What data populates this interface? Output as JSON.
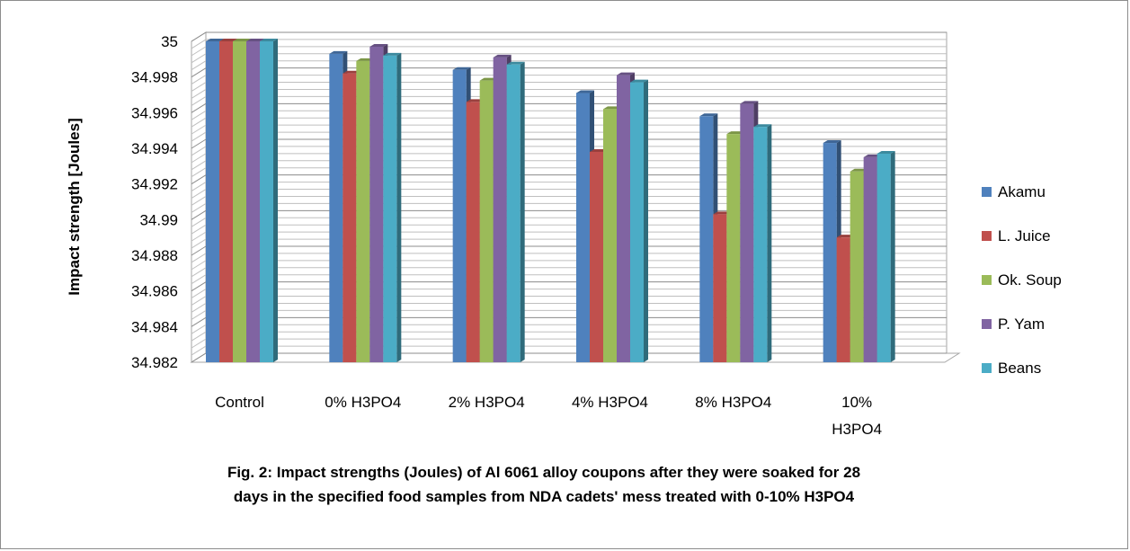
{
  "chart_data": {
    "type": "bar",
    "title": "",
    "caption": "Fig. 2: Impact strengths (Joules) of Al 6061 alloy coupons after they were soaked for 28\ndays in the specified food samples from NDA cadets' mess treated with 0-10%  H3PO4",
    "ylabel": "Impact strength [Joules]",
    "xlabel": "",
    "categories": [
      "Control",
      "0% H3PO4",
      "2% H3PO4",
      "4% H3PO4",
      "8% H3PO4",
      "10% H3PO4"
    ],
    "category_labels": [
      [
        "Control"
      ],
      [
        "0% H3PO4"
      ],
      [
        "2% H3PO4"
      ],
      [
        "4% H3PO4"
      ],
      [
        "8% H3PO4"
      ],
      [
        "10%",
        "H3PO4"
      ]
    ],
    "ylim": [
      34.982,
      35
    ],
    "yticks": [
      {
        "value": 35,
        "label": "35"
      },
      {
        "value": 34.998,
        "label": "34.998"
      },
      {
        "value": 34.996,
        "label": "34.996"
      },
      {
        "value": 34.994,
        "label": "34.994"
      },
      {
        "value": 34.992,
        "label": "34.992"
      },
      {
        "value": 34.99,
        "label": "34.99"
      },
      {
        "value": 34.988,
        "label": "34.988"
      },
      {
        "value": 34.986,
        "label": "34.986"
      },
      {
        "value": 34.984,
        "label": "34.984"
      },
      {
        "value": 34.982,
        "label": "34.982"
      }
    ],
    "grid": true,
    "legend_position": "right",
    "series": [
      {
        "name": "Akamu",
        "color": "#4f81bd",
        "values": [
          35,
          34.9993,
          34.9984,
          34.9971,
          34.9958,
          34.9943
        ]
      },
      {
        "name": "L. Juice",
        "color": "#c0504d",
        "values": [
          35,
          34.9982,
          34.9966,
          34.9938,
          34.9903,
          34.989
        ]
      },
      {
        "name": "Ok. Soup",
        "color": "#9bbb59",
        "values": [
          35,
          34.9989,
          34.9978,
          34.9962,
          34.9948,
          34.9927
        ]
      },
      {
        "name": "P. Yam",
        "color": "#8064a2",
        "values": [
          35,
          34.9997,
          34.9991,
          34.9981,
          34.9965,
          34.9935
        ]
      },
      {
        "name": "Beans",
        "color": "#4bacc6",
        "values": [
          35,
          34.9992,
          34.9987,
          34.9977,
          34.9952,
          34.9937
        ]
      }
    ]
  }
}
